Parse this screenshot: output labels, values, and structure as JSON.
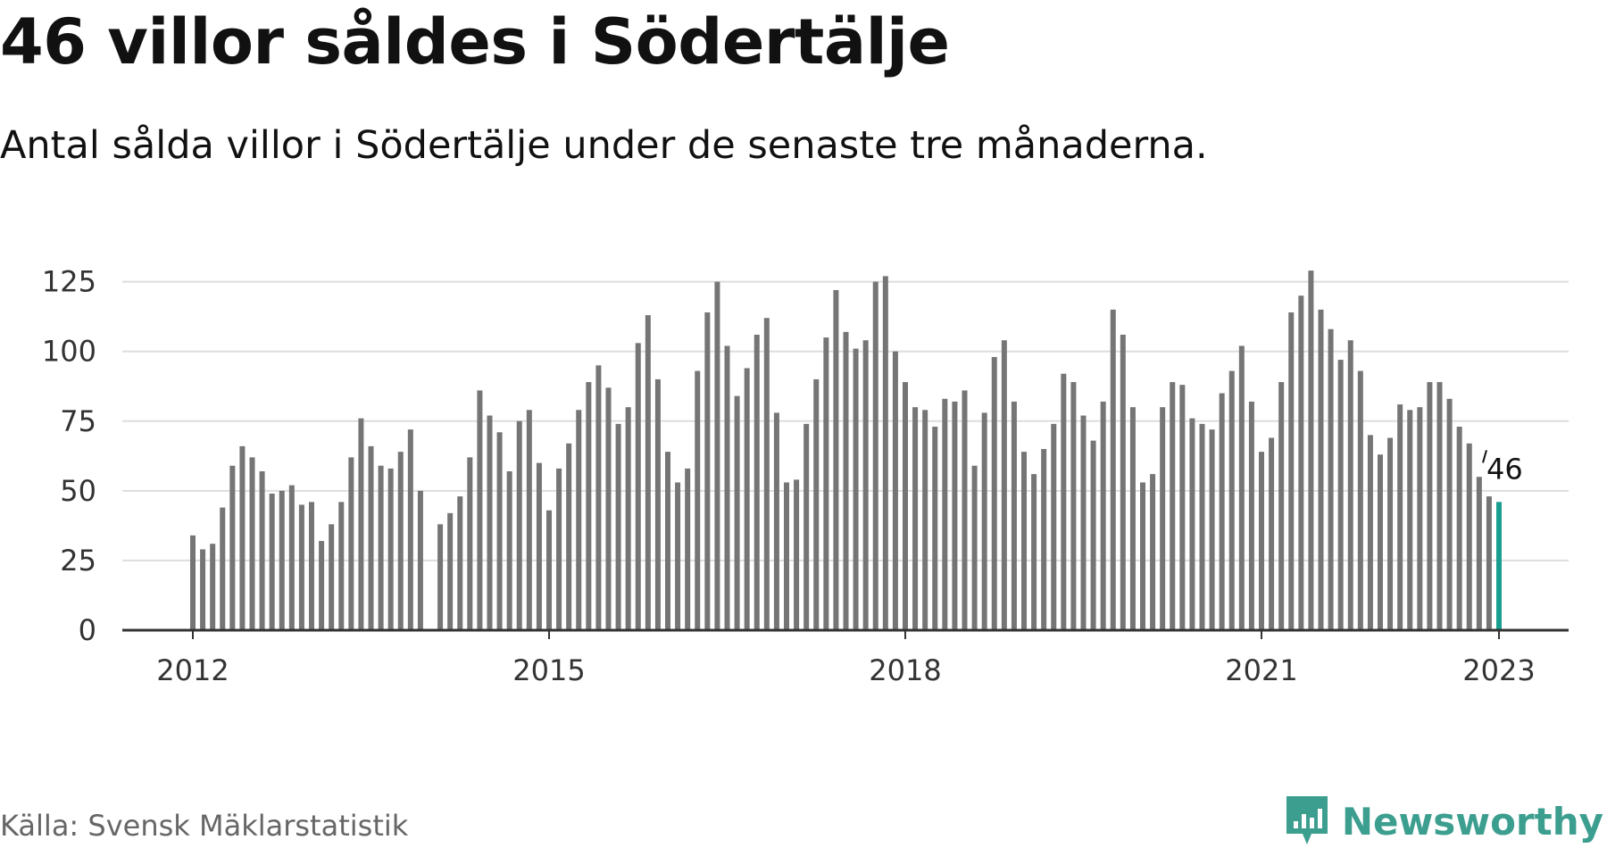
{
  "header": {
    "title": "46 villor såldes i Södertälje",
    "subtitle": "Antal sålda villor i Södertälje under de senaste tre månaderna."
  },
  "footer": {
    "source": "Källa: Svensk Mäklarstatistik",
    "brand": "Newsworthy",
    "brand_icon": "newsworthy-logo-icon"
  },
  "colors": {
    "bar": "#757575",
    "highlight": "#1a9e8f",
    "grid": "#dddddd",
    "axis": "#333333",
    "brand": "#3c9e8f"
  },
  "chart_data": {
    "type": "bar",
    "title": "46 villor såldes i Södertälje",
    "subtitle": "Antal sålda villor i Södertälje under de senaste tre månaderna.",
    "xlabel": "",
    "ylabel": "",
    "ylim": [
      0,
      130
    ],
    "yticks": [
      0,
      25,
      50,
      75,
      100,
      125
    ],
    "xticks": [
      "2012",
      "2015",
      "2018",
      "2021",
      "2023"
    ],
    "grid": true,
    "highlight_label": "46",
    "series": [
      {
        "values": [
          34,
          29,
          31,
          44,
          59,
          66,
          62,
          57,
          49,
          50,
          52,
          45,
          46,
          32,
          38,
          46,
          62,
          76,
          66,
          59,
          58,
          64,
          72,
          50,
          null,
          38,
          42,
          48,
          62,
          86,
          77,
          71,
          57,
          75,
          79,
          60,
          43,
          58,
          67,
          79,
          89,
          95,
          87,
          74,
          80,
          103,
          113,
          90,
          64,
          53,
          58,
          93,
          114,
          125,
          102,
          84,
          94,
          106,
          112,
          78,
          53,
          54,
          74,
          90,
          105,
          122,
          107,
          101,
          104,
          125,
          127,
          100,
          89,
          80,
          79,
          73,
          83,
          82,
          86,
          59,
          78,
          98,
          104,
          82,
          64,
          56,
          65,
          74,
          92,
          89,
          77,
          68,
          82,
          115,
          106,
          80,
          53,
          56,
          80,
          89,
          88,
          76,
          74,
          72,
          85,
          93,
          102,
          82,
          64,
          69,
          89,
          114,
          120,
          129,
          115,
          108,
          97,
          104,
          93,
          70,
          63,
          69,
          81,
          79,
          80,
          89,
          89,
          83,
          73,
          67,
          55,
          48,
          46
        ]
      }
    ]
  }
}
